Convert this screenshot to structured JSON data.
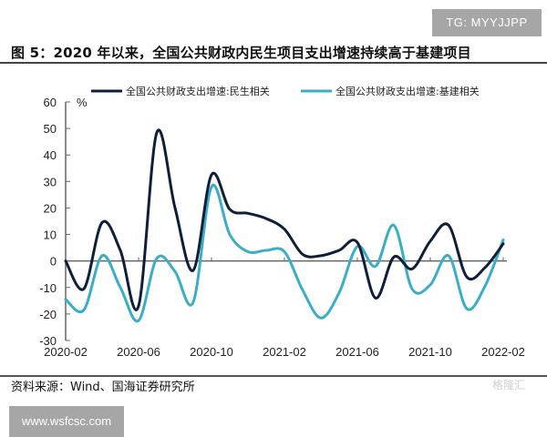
{
  "badges": {
    "telegram": "TG: MYYJJPP",
    "website": "www.wsfcsc.com"
  },
  "figure": {
    "title": "图 5：2020 年以来，全国公共财政内民生项目支出增速持续高于基建项目",
    "source": "资料来源：Wind、国海证券研究所",
    "watermark": "格隆汇"
  },
  "colors": {
    "series_1": "#0f1f3a",
    "series_2": "#3aaec6",
    "axis": "#666666"
  },
  "chart_data": {
    "type": "line",
    "title": "2020 年以来，全国公共财政内民生项目支出增速持续高于基建项目",
    "xlabel": "",
    "ylabel": "%",
    "ylim": [
      -30,
      60
    ],
    "yticks": [
      60,
      50,
      40,
      30,
      20,
      10,
      0,
      -10,
      -20,
      -30
    ],
    "xticks": [
      "2020-02",
      "2020-06",
      "2020-10",
      "2021-02",
      "2021-06",
      "2021-10",
      "2022-02"
    ],
    "grid": false,
    "legend_position": "top",
    "x": [
      "2020-02",
      "2020-03",
      "2020-04",
      "2020-05",
      "2020-06",
      "2020-07",
      "2020-08",
      "2020-09",
      "2020-10",
      "2020-11",
      "2020-12",
      "2021-01",
      "2021-02",
      "2021-03",
      "2021-04",
      "2021-05",
      "2021-06",
      "2021-07",
      "2021-08",
      "2021-09",
      "2021-10",
      "2021-11",
      "2021-12",
      "2022-01",
      "2022-02"
    ],
    "series": [
      {
        "name": "全国公共财政支出增速:民生相关",
        "values": [
          0,
          -10.5,
          14.5,
          4,
          -17,
          48.5,
          20,
          -3.5,
          32.5,
          19.5,
          18,
          16,
          12,
          2.5,
          2,
          4,
          7,
          -14,
          1.5,
          -3,
          7.5,
          13.5,
          -6,
          -2.5,
          6.5
        ]
      },
      {
        "name": "全国公共财政支出增速:基建相关",
        "values": [
          -14.5,
          -18.5,
          2,
          -10,
          -22.5,
          1,
          -4,
          -15.5,
          28,
          10,
          3.5,
          4,
          3.5,
          -11,
          -21.5,
          -12,
          5.5,
          -2,
          13.5,
          -10.5,
          -9,
          2,
          -18,
          -9.5,
          8
        ]
      }
    ]
  }
}
